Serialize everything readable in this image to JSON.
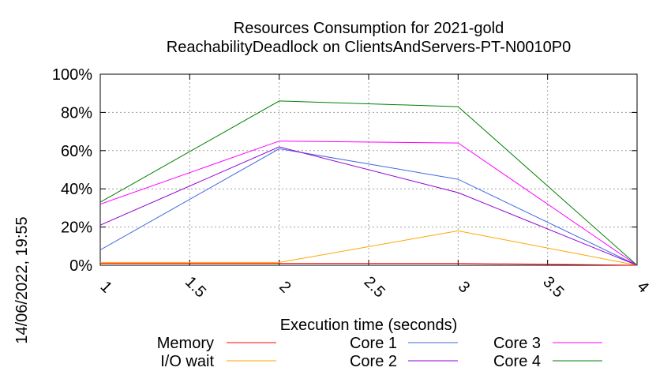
{
  "chart_data": {
    "type": "line",
    "title_line1": "Resources Consumption for 2021-gold",
    "title_line2": "ReachabilityDeadlock on ClientsAndServers-PT-N0010P0",
    "xlabel": "Execution time (seconds)",
    "side_label": "14/06/2022, 19:55",
    "xlim": [
      1,
      4
    ],
    "ylim": [
      0,
      100
    ],
    "x_ticks": [
      1,
      1.5,
      2,
      2.5,
      3,
      3.5,
      4
    ],
    "x_tick_labels": [
      "1",
      "1.5",
      "2",
      "2.5",
      "3",
      "3.5",
      "4"
    ],
    "y_ticks": [
      0,
      20,
      40,
      60,
      80,
      100
    ],
    "y_tick_labels": [
      "0%",
      "20%",
      "40%",
      "60%",
      "80%",
      "100%"
    ],
    "grid": true,
    "legend_placement": "bottom",
    "series": [
      {
        "name": "Memory",
        "color": "#ff0000",
        "x": [
          1,
          2,
          3,
          4
        ],
        "values": [
          1,
          1,
          1,
          0
        ]
      },
      {
        "name": "I/O wait",
        "color": "#ffa500",
        "x": [
          1,
          2,
          3,
          4
        ],
        "values": [
          1.5,
          1.5,
          18,
          0
        ]
      },
      {
        "name": "Core 1",
        "color": "#4169e1",
        "x": [
          1,
          2,
          3,
          4
        ],
        "values": [
          8,
          61,
          45,
          0
        ]
      },
      {
        "name": "Core 2",
        "color": "#9400d3",
        "x": [
          1,
          2,
          3,
          4
        ],
        "values": [
          21,
          62,
          38,
          0
        ]
      },
      {
        "name": "Core 3",
        "color": "#ff00ff",
        "x": [
          1,
          2,
          3,
          4
        ],
        "values": [
          32,
          65,
          64,
          0
        ]
      },
      {
        "name": "Core 4",
        "color": "#008000",
        "x": [
          1,
          2,
          3,
          4
        ],
        "values": [
          33,
          86,
          83,
          0
        ]
      }
    ]
  }
}
